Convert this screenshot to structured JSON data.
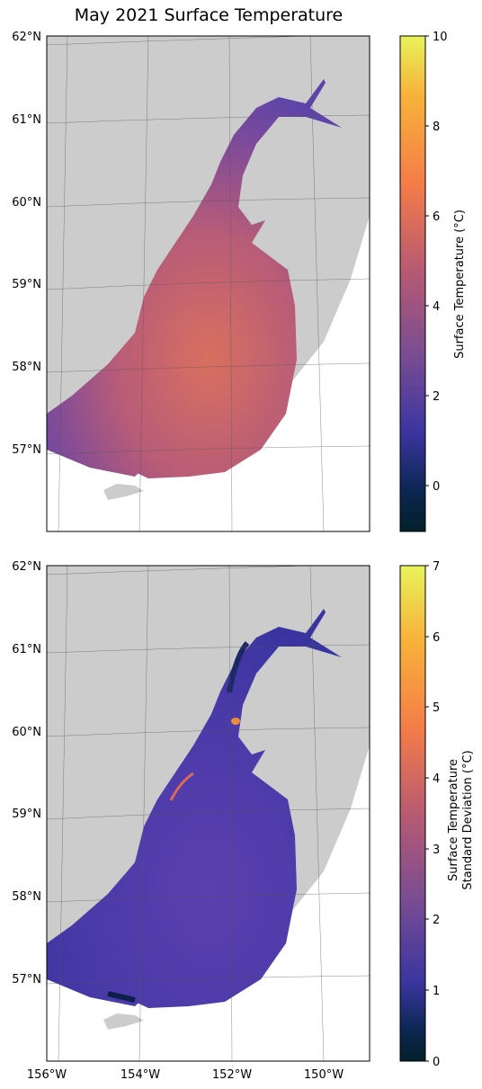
{
  "title": "May 2021 Surface Temperature",
  "latitude_labels": [
    "62°N",
    "61°N",
    "60°N",
    "59°N",
    "58°N",
    "57°N"
  ],
  "longitude_labels": [
    "156°W",
    "154°W",
    "152°W",
    "150°W"
  ],
  "panels": [
    {
      "name": "surface-temperature",
      "colorbar": {
        "label": "Surface Temperature (°C)",
        "ticks": [
          "10",
          "8",
          "6",
          "4",
          "2",
          "0"
        ],
        "range": [
          -1,
          10
        ],
        "colormap": [
          "#e8f35a",
          "#f7b23a",
          "#f47c49",
          "#c05a6e",
          "#7b4d92",
          "#3b35a0",
          "#0b2048",
          "#03202a"
        ]
      },
      "fill_colors": [
        "#e47a5e",
        "#b45c78",
        "#7b4a9a",
        "#5f42a8"
      ]
    },
    {
      "name": "surface-temperature-std",
      "colorbar": {
        "label_line1": "Surface Temperature",
        "label_line2": "Standard Deviation (°C)",
        "ticks": [
          "7",
          "6",
          "5",
          "4",
          "3",
          "2",
          "1",
          "0"
        ],
        "range": [
          0,
          7
        ],
        "colormap": [
          "#e8f35a",
          "#f7b23a",
          "#f47c49",
          "#c05a6e",
          "#7b4d92",
          "#3b35a0",
          "#0b2048",
          "#03202a"
        ]
      },
      "fill_colors": [
        "#5d3fb0",
        "#4a3aa8",
        "#1b2a66",
        "#f08a3e"
      ]
    }
  ],
  "land_color": "#cccccc",
  "graticule_color": "#555555"
}
